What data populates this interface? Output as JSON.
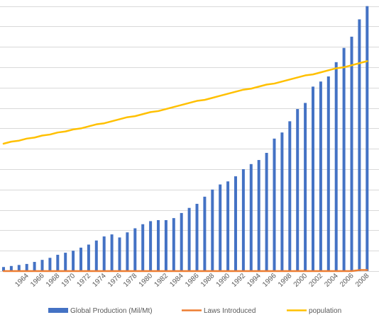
{
  "chart_data": {
    "type": "bar",
    "xlabel": "",
    "ylabel": "",
    "grid": true,
    "legend_position": "bottom",
    "x_years": [
      1961,
      1962,
      1963,
      1964,
      1965,
      1966,
      1967,
      1968,
      1969,
      1970,
      1971,
      1972,
      1973,
      1974,
      1975,
      1976,
      1977,
      1978,
      1979,
      1980,
      1981,
      1982,
      1983,
      1984,
      1985,
      1986,
      1987,
      1988,
      1989,
      1990,
      1991,
      1992,
      1993,
      1994,
      1995,
      1996,
      1997,
      1998,
      1999,
      2000,
      2001,
      2002,
      2003,
      2004,
      2005,
      2006,
      2007,
      2008
    ],
    "tick_labels": [
      "1964",
      "1966",
      "1968",
      "1970",
      "1972",
      "1974",
      "1976",
      "1978",
      "1980",
      "1982",
      "1984",
      "1986",
      "1988",
      "1990",
      "1992",
      "1994",
      "1996",
      "1998",
      "2000",
      "2002",
      "2004",
      "2006",
      "2008"
    ],
    "series": [
      {
        "name": "Global Production (Mil/Mt)",
        "kind": "bar",
        "color": "#4472C4",
        "values": [
          4,
          5,
          6,
          7,
          9,
          11,
          13,
          16,
          18,
          20,
          23,
          26,
          30,
          34,
          36,
          33,
          38,
          42,
          46,
          49,
          50,
          50,
          52,
          57,
          62,
          66,
          73,
          80,
          85,
          88,
          93,
          100,
          105,
          109,
          116,
          130,
          136,
          147,
          159,
          165,
          181,
          186,
          191,
          205,
          219,
          230,
          247,
          260
        ]
      },
      {
        "name": "Laws Introduced",
        "kind": "line",
        "color": "#ED7D31",
        "values": [
          0,
          0,
          0,
          0,
          0,
          0,
          0,
          0,
          0,
          0,
          0,
          0,
          0,
          0,
          0,
          0,
          0,
          0,
          0,
          0,
          0,
          0,
          0,
          0,
          0,
          0,
          0,
          0,
          0,
          0,
          0,
          0,
          0,
          0,
          0,
          0,
          0,
          0,
          0,
          0,
          0,
          0,
          0,
          0,
          0,
          0,
          1,
          1
        ]
      },
      {
        "name": "population",
        "kind": "line",
        "color": "#FFC000",
        "values": [
          125,
          127,
          128,
          130,
          131,
          133,
          134,
          136,
          137,
          139,
          140,
          142,
          144,
          145,
          147,
          149,
          151,
          152,
          154,
          156,
          157,
          159,
          161,
          163,
          165,
          167,
          168,
          170,
          172,
          174,
          176,
          178,
          179,
          181,
          183,
          184,
          186,
          188,
          190,
          192,
          193,
          195,
          197,
          199,
          200,
          202,
          204,
          206
        ]
      }
    ]
  }
}
